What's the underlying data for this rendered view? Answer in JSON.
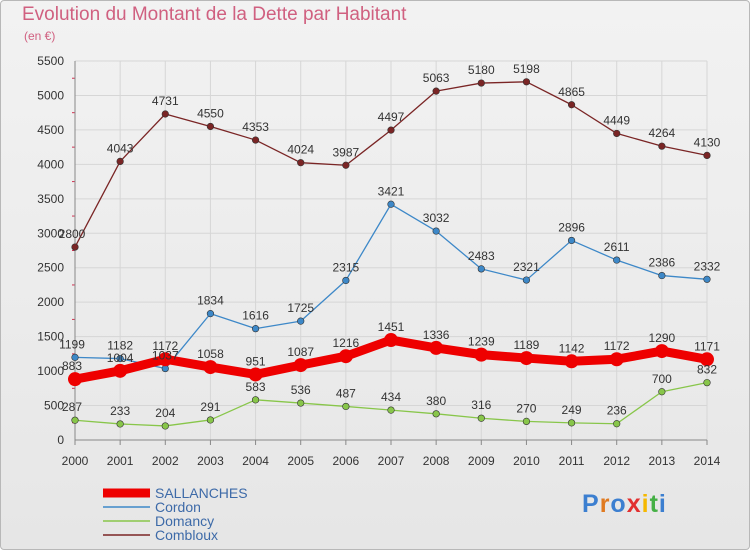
{
  "title": "Evolution du Montant de la Dette par Habitant",
  "subtitle": "(en €)",
  "logo": [
    "P",
    "r",
    "o",
    "x",
    "i",
    "t",
    "i"
  ],
  "colors": {
    "title": "#d06080",
    "grid": "#d6d6d6",
    "axis": "#888888",
    "logo": [
      "#3c7fd0",
      "#e07a20",
      "#3c7fd0",
      "#e23030",
      "#f5b800",
      "#45b045",
      "#3c7fd0"
    ]
  },
  "chart_data": {
    "type": "line",
    "title": "Evolution du Montant de la Dette par Habitant",
    "ylabel": "(en €)",
    "xlabel": "",
    "ylim": [
      0,
      5500
    ],
    "yticks": [
      0,
      500,
      1000,
      1500,
      2000,
      2500,
      3000,
      3500,
      4000,
      4500,
      5000,
      5500
    ],
    "x": [
      "2000",
      "2001",
      "2002",
      "2003",
      "2004",
      "2005",
      "2006",
      "2007",
      "2008",
      "2009",
      "2010",
      "2011",
      "2012",
      "2013",
      "2014"
    ],
    "grid": true,
    "legend_position": "bottom-left",
    "series": [
      {
        "name": "Combloux",
        "color": "#7a2525",
        "values": [
          2800,
          4043,
          4731,
          4550,
          4353,
          4024,
          3987,
          4497,
          5063,
          5180,
          5198,
          4865,
          4449,
          4264,
          4130
        ]
      },
      {
        "name": "Cordon",
        "color": "#3d88c8",
        "values": [
          1199,
          1182,
          1037,
          1834,
          1616,
          1725,
          2315,
          3421,
          3032,
          2483,
          2321,
          2896,
          2611,
          2386,
          2332
        ]
      },
      {
        "name": "Domancy",
        "color": "#88c64a",
        "values": [
          287,
          233,
          204,
          291,
          583,
          536,
          487,
          434,
          380,
          316,
          270,
          249,
          236,
          700,
          832
        ]
      },
      {
        "name": "SALLANCHES",
        "color": "#ee0000",
        "values": [
          883,
          1004,
          1172,
          1058,
          951,
          1087,
          1216,
          1451,
          1336,
          1239,
          1189,
          1142,
          1172,
          1290,
          1171
        ]
      }
    ],
    "legend_order": [
      "SALLANCHES",
      "Cordon",
      "Domancy",
      "Combloux"
    ],
    "labels": {
      "Combloux": [
        "2800",
        "4043",
        "4731",
        "4550",
        "4353",
        "4024",
        "3987",
        "4497",
        "5063",
        "5180",
        "5198",
        "4865",
        "4449",
        "4264",
        "4130"
      ],
      "Cordon": [
        "1199",
        "1182",
        "1037",
        "1834",
        "1616",
        "1725",
        "2315",
        "3421",
        "3032",
        "2483",
        "2321",
        "2896",
        "2611",
        "2386",
        "2332"
      ],
      "Domancy": [
        "287",
        "233",
        "204",
        "291",
        "583",
        "536",
        "487",
        "434",
        "380",
        "316",
        "270",
        "249",
        "236",
        "700",
        "832"
      ],
      "SALLANCHES": [
        "883",
        "1004",
        "1172",
        "1058",
        "951",
        "1087",
        "1216",
        "1451",
        "1336",
        "1239",
        "1189",
        "1142",
        "1172",
        "1290",
        "1171"
      ]
    }
  }
}
